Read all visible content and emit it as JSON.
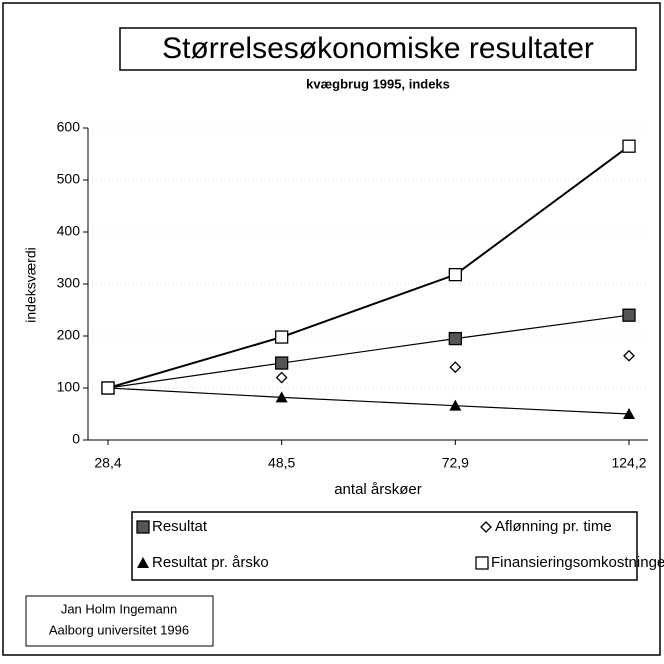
{
  "chart_data": {
    "type": "line",
    "title": "Størrelsesøkonomiske resultater",
    "subtitle": "kvægbrug 1995, indeks",
    "x_label": "antal årskøer",
    "y_label": "indeksværdi",
    "categories": [
      "28,4",
      "48,5",
      "72,9",
      "124,2"
    ],
    "series": [
      {
        "name": "Resultat",
        "color": "#000000",
        "marker": "hatched-square",
        "line": true,
        "values": [
          100,
          148,
          195,
          240
        ]
      },
      {
        "name": "Aflønning pr. time",
        "color": "#000000",
        "marker": "diamond",
        "line": false,
        "values": [
          100,
          120,
          140,
          162
        ]
      },
      {
        "name": "Resultat pr. årsko",
        "color": "#000000",
        "marker": "triangle",
        "line": true,
        "values": [
          100,
          82,
          66,
          50
        ]
      },
      {
        "name": "Finansieringsomkostninger",
        "color": "#000000",
        "marker": "open-square",
        "line": true,
        "values": [
          100,
          198,
          318,
          565
        ]
      }
    ],
    "ylim": [
      0,
      600
    ],
    "yticks": [
      0,
      100,
      200,
      300,
      400,
      500,
      600
    ],
    "grid": true,
    "credit": [
      "Jan Holm Ingemann",
      "Aalborg universitet 1996"
    ]
  }
}
